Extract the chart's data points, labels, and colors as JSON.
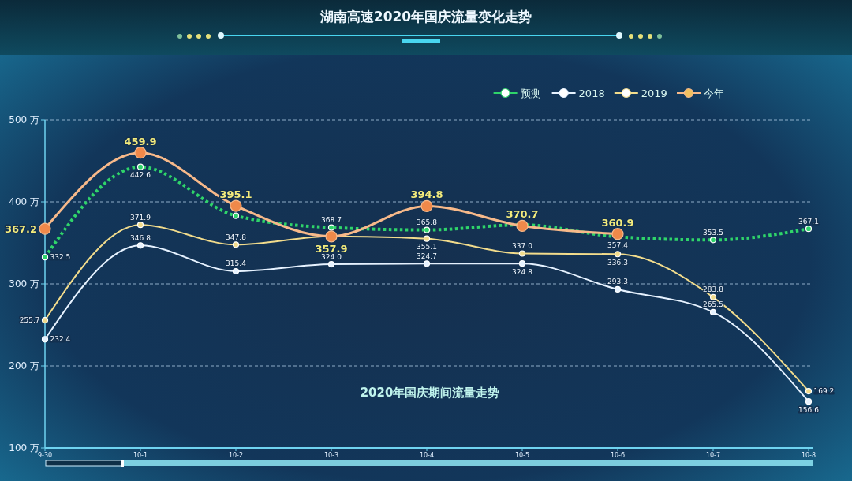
{
  "chart_data": {
    "type": "line",
    "title": "湖南高速2020年国庆流量变化走势",
    "subtitle": "2020年国庆期间流量走势",
    "categories": [
      "9-30",
      "10-1",
      "10-2",
      "10-3",
      "10-4",
      "10-5",
      "10-6",
      "10-7",
      "10-8"
    ],
    "series": [
      {
        "name": "预测",
        "color": "#2fd46a",
        "line_style": "dotted",
        "values": [
          332.5,
          442.6,
          383,
          368.7,
          365.8,
          372,
          357.4,
          353.5,
          367.1
        ],
        "value_labels": [
          "332.5",
          "442.6",
          null,
          "368.7",
          "365.8",
          null,
          "357.4",
          "353.5",
          "367.1"
        ]
      },
      {
        "name": "2018",
        "color": "#e6f2ff",
        "values": [
          232.4,
          346.8,
          315.4,
          324.0,
          324.7,
          324.8,
          293.3,
          265.5,
          156.6
        ],
        "value_labels": [
          "232.4",
          "346.8",
          "315.4",
          "324.0",
          "324.7",
          "324.8",
          "293.3",
          "265.5",
          "156.6"
        ]
      },
      {
        "name": "2019",
        "color": "#f2dc8c",
        "values": [
          255.7,
          371.9,
          347.8,
          358,
          355.1,
          337.0,
          336.3,
          283.8,
          169.2
        ],
        "value_labels": [
          "255.7",
          "371.9",
          "347.8",
          null,
          "355.1",
          "337.0",
          "336.3",
          "283.8",
          "169.2"
        ]
      },
      {
        "name": "今年",
        "color": "#f7b98a",
        "values": [
          367.2,
          459.9,
          395.1,
          357.9,
          394.8,
          370.7,
          360.9,
          null,
          null
        ],
        "value_labels": [
          "367.2",
          "459.9",
          "395.1",
          "357.9",
          "394.8",
          "370.7",
          "360.9",
          null,
          null
        ]
      }
    ],
    "ylim": [
      100,
      500
    ],
    "yticks": [
      {
        "value": 100,
        "label": "100 万"
      },
      {
        "value": 200,
        "label": "200 万"
      },
      {
        "value": 300,
        "label": "300 万"
      },
      {
        "value": 400,
        "label": "400 万"
      },
      {
        "value": 500,
        "label": "500 万"
      }
    ],
    "grid": "y",
    "legend": "top right",
    "marker": "circle",
    "line_style": "solid"
  }
}
